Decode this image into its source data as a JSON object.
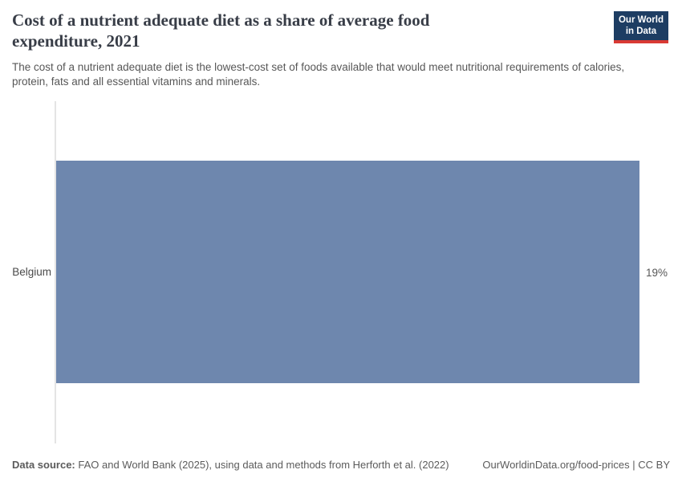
{
  "header": {
    "title_lines": [
      "Cost of a nutrient adequate diet as a share of average food",
      "expenditure, 2021"
    ],
    "subtitle": "The cost of a nutrient adequate diet is the lowest-cost set of foods available that would meet nutritional requirements of calories, protein, fats and all essential vitamins and minerals.",
    "logo": {
      "line1": "Our World",
      "line2": "in Data"
    }
  },
  "chart_data": {
    "type": "bar",
    "orientation": "horizontal",
    "title": "Cost of a nutrient adequate diet as a share of average food expenditure, 2021",
    "categories": [
      "Belgium"
    ],
    "values": [
      19
    ],
    "value_labels": [
      "19%"
    ],
    "unit": "%",
    "xlim": [
      0,
      19
    ],
    "grid": false,
    "legend": "none",
    "bar_color": "#6e87ae",
    "axis_color": "#e4e4e4"
  },
  "footer": {
    "datasource_label": "Data source:",
    "datasource_text": " FAO and World Bank (2025), using data and methods from Herforth et al. (2022)",
    "link_text": "OurWorldinData.org/food-prices | CC BY"
  },
  "colors": {
    "title": "#383d47",
    "body_text": "#575757",
    "entity_label": "#4a4a4a",
    "logo_navy": "#1d3d63",
    "logo_red": "#d93a34"
  }
}
